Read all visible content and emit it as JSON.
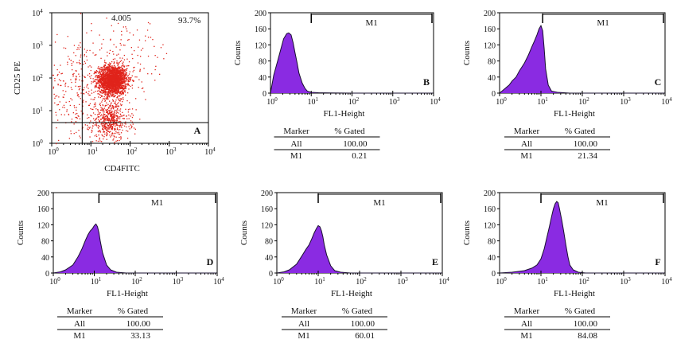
{
  "chart_data": [
    {
      "id": "A",
      "type": "scatter",
      "panel_letter": "A",
      "xlabel": "CD4FITC",
      "ylabel": "CD25 PE",
      "x_scale": "log",
      "y_scale": "log",
      "xlim": [
        1,
        10000
      ],
      "ylim": [
        1,
        10000
      ],
      "x_ticks": [
        {
          "base": "10",
          "exp": "0"
        },
        {
          "base": "10",
          "exp": "1"
        },
        {
          "base": "10",
          "exp": "2"
        },
        {
          "base": "10",
          "exp": "3"
        },
        {
          "base": "10",
          "exp": "4"
        }
      ],
      "y_ticks": [
        {
          "base": "10",
          "exp": "0"
        },
        {
          "base": "10",
          "exp": "1"
        },
        {
          "base": "10",
          "exp": "2"
        },
        {
          "base": "10",
          "exp": "3"
        },
        {
          "base": "10",
          "exp": "4"
        }
      ],
      "quadrant_gate": {
        "x": 6,
        "y": 4.3
      },
      "quadrant_labels": {
        "upper_left": "4.005",
        "upper_right": "93.7%"
      },
      "point_color": "#e0241b",
      "populations": [
        {
          "center": [
            35,
            90
          ],
          "spread": [
            0.18,
            0.22
          ],
          "n": 2200
        },
        {
          "center": [
            30,
            5
          ],
          "spread": [
            0.25,
            0.3
          ],
          "n": 500
        },
        {
          "center": [
            6,
            40
          ],
          "spread": [
            0.6,
            0.7
          ],
          "n": 350
        },
        {
          "center": [
            80,
            400
          ],
          "spread": [
            0.6,
            0.6
          ],
          "n": 120
        }
      ]
    },
    {
      "id": "B",
      "type": "area",
      "panel_letter": "B",
      "xlabel": "FL1-Height",
      "ylabel": "Counts",
      "x_scale": "log",
      "xlim": [
        1,
        10000
      ],
      "ylim": [
        0,
        200
      ],
      "y_ticks": [
        "0",
        "40",
        "80",
        "120",
        "160",
        "200"
      ],
      "x_ticks": [
        {
          "base": "10",
          "exp": "0"
        },
        {
          "base": "10",
          "exp": "1"
        },
        {
          "base": "10",
          "exp": "2"
        },
        {
          "base": "10",
          "exp": "3"
        },
        {
          "base": "10",
          "exp": "4"
        }
      ],
      "gate": {
        "label": "M1",
        "from": 10,
        "to": 10000
      },
      "fill_color": "#8a2be2",
      "series": [
        {
          "x": [
            1,
            1.2,
            1.5,
            1.8,
            2.1,
            2.5,
            2.8,
            3.2,
            3.6,
            4,
            4.5,
            5,
            6,
            7,
            8,
            10,
            15,
            30,
            100,
            10000
          ],
          "y": [
            0,
            45,
            80,
            110,
            135,
            148,
            150,
            145,
            125,
            100,
            75,
            50,
            25,
            12,
            5,
            2,
            1,
            0.5,
            0,
            0
          ]
        }
      ],
      "stats": {
        "header": [
          "Marker",
          "% Gated"
        ],
        "rows": [
          [
            "All",
            "100.00"
          ],
          [
            "M1",
            "0.21"
          ]
        ]
      }
    },
    {
      "id": "C",
      "type": "area",
      "panel_letter": "C",
      "xlabel": "FL1-Height",
      "ylabel": "Counts",
      "x_scale": "log",
      "xlim": [
        1,
        10000
      ],
      "ylim": [
        0,
        200
      ],
      "y_ticks": [
        "0",
        "40",
        "80",
        "120",
        "160",
        "200"
      ],
      "x_ticks": [
        {
          "base": "10",
          "exp": "0"
        },
        {
          "base": "10",
          "exp": "1"
        },
        {
          "base": "10",
          "exp": "2"
        },
        {
          "base": "10",
          "exp": "3"
        },
        {
          "base": "10",
          "exp": "4"
        }
      ],
      "gate": {
        "label": "M1",
        "from": 11,
        "to": 10000
      },
      "fill_color": "#8a2be2",
      "series": [
        {
          "x": [
            1,
            1.3,
            1.7,
            2,
            2.5,
            3,
            4,
            5,
            6,
            7,
            8,
            9,
            10,
            11,
            12,
            13,
            15,
            18,
            25,
            50,
            10000
          ],
          "y": [
            0,
            10,
            20,
            30,
            40,
            55,
            75,
            95,
            115,
            130,
            145,
            160,
            168,
            155,
            110,
            60,
            20,
            5,
            2,
            0,
            0
          ]
        }
      ],
      "stats": {
        "header": [
          "Marker",
          "% Gated"
        ],
        "rows": [
          [
            "All",
            "100.00"
          ],
          [
            "M1",
            "21.34"
          ]
        ]
      }
    },
    {
      "id": "D",
      "type": "area",
      "panel_letter": "D",
      "xlabel": "FL1-Height",
      "ylabel": "Counts",
      "x_scale": "log",
      "xlim": [
        1,
        10000
      ],
      "ylim": [
        0,
        200
      ],
      "y_ticks": [
        "0",
        "40",
        "80",
        "120",
        "160",
        "200"
      ],
      "x_ticks": [
        {
          "base": "10",
          "exp": "0"
        },
        {
          "base": "10",
          "exp": "1"
        },
        {
          "base": "10",
          "exp": "2"
        },
        {
          "base": "10",
          "exp": "3"
        },
        {
          "base": "10",
          "exp": "4"
        }
      ],
      "gate": {
        "label": "M1",
        "from": 13,
        "to": 10000
      },
      "fill_color": "#8a2be2",
      "series": [
        {
          "x": [
            1,
            1.5,
            2,
            3,
            4,
            5,
            6,
            7,
            8,
            9,
            10,
            11,
            12,
            13,
            14,
            16,
            20,
            25,
            35,
            60,
            10000
          ],
          "y": [
            0,
            3,
            8,
            20,
            40,
            60,
            80,
            95,
            105,
            110,
            118,
            122,
            115,
            100,
            80,
            50,
            20,
            8,
            2,
            0,
            0
          ]
        }
      ],
      "stats": {
        "header": [
          "Marker",
          "% Gated"
        ],
        "rows": [
          [
            "All",
            "100.00"
          ],
          [
            "M1",
            "33.13"
          ]
        ]
      }
    },
    {
      "id": "E",
      "type": "area",
      "panel_letter": "E",
      "xlabel": "FL1-Height",
      "ylabel": "Counts",
      "x_scale": "log",
      "xlim": [
        1,
        10000
      ],
      "ylim": [
        0,
        200
      ],
      "y_ticks": [
        "0",
        "40",
        "80",
        "120",
        "160",
        "200"
      ],
      "x_ticks": [
        {
          "base": "10",
          "exp": "0"
        },
        {
          "base": "10",
          "exp": "1"
        },
        {
          "base": "10",
          "exp": "2"
        },
        {
          "base": "10",
          "exp": "3"
        },
        {
          "base": "10",
          "exp": "4"
        }
      ],
      "gate": {
        "label": "M1",
        "from": 10,
        "to": 10000
      },
      "fill_color": "#8a2be2",
      "series": [
        {
          "x": [
            1,
            1.5,
            2,
            3,
            4,
            5,
            6,
            7,
            8,
            9,
            10,
            11,
            12,
            13,
            14,
            16,
            20,
            25,
            35,
            60,
            10000
          ],
          "y": [
            0,
            3,
            8,
            22,
            42,
            58,
            70,
            85,
            100,
            110,
            118,
            115,
            105,
            90,
            70,
            45,
            18,
            6,
            2,
            0,
            0
          ]
        }
      ],
      "stats": {
        "header": [
          "Marker",
          "% Gated"
        ],
        "rows": [
          [
            "All",
            "100.00"
          ],
          [
            "M1",
            "60.01"
          ]
        ]
      }
    },
    {
      "id": "F",
      "type": "area",
      "panel_letter": "F",
      "xlabel": "FL1-Height",
      "ylabel": "Counts",
      "x_scale": "log",
      "xlim": [
        1,
        10000
      ],
      "ylim": [
        0,
        200
      ],
      "y_ticks": [
        "0",
        "40",
        "80",
        "120",
        "160",
        "200"
      ],
      "x_ticks": [
        {
          "base": "10",
          "exp": "0"
        },
        {
          "base": "10",
          "exp": "1"
        },
        {
          "base": "10",
          "exp": "2"
        },
        {
          "base": "10",
          "exp": "3"
        },
        {
          "base": "10",
          "exp": "4"
        }
      ],
      "gate": {
        "label": "M1",
        "from": 10,
        "to": 10000
      },
      "fill_color": "#8a2be2",
      "series": [
        {
          "x": [
            1,
            2,
            4,
            6,
            8,
            10,
            12,
            14,
            16,
            18,
            20,
            22,
            24,
            26,
            28,
            32,
            36,
            40,
            45,
            50,
            60,
            80,
            120,
            10000
          ],
          "y": [
            0,
            2,
            6,
            12,
            20,
            35,
            60,
            90,
            115,
            140,
            160,
            172,
            178,
            175,
            160,
            130,
            100,
            70,
            40,
            20,
            8,
            2,
            0,
            0
          ]
        }
      ],
      "stats": {
        "header": [
          "Marker",
          "% Gated"
        ],
        "rows": [
          [
            "All",
            "100.00"
          ],
          [
            "M1",
            "84.08"
          ]
        ]
      }
    }
  ]
}
